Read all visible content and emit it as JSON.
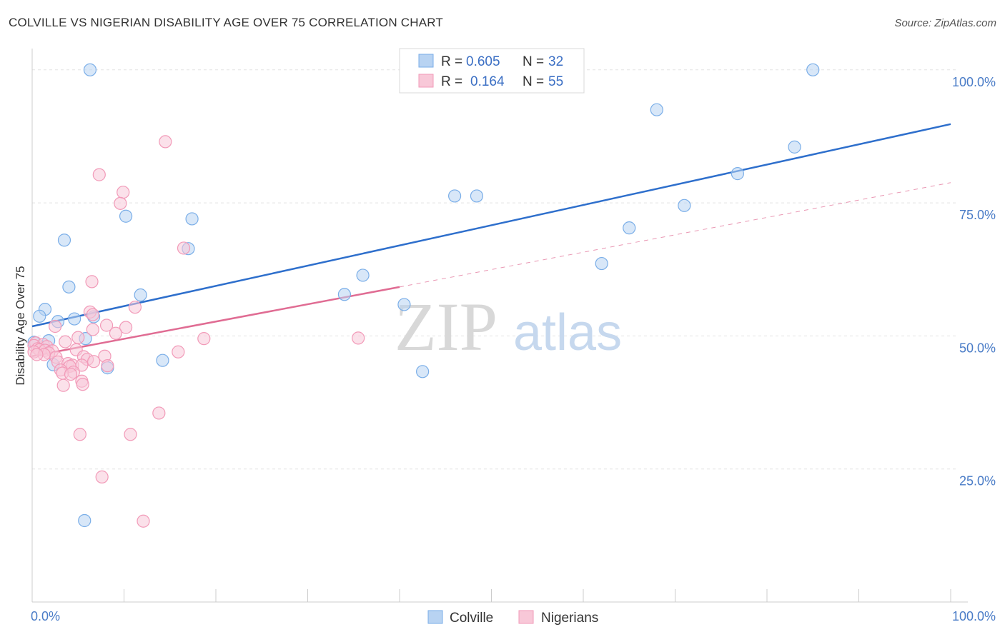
{
  "title": "COLVILLE VS NIGERIAN DISABILITY AGE OVER 75 CORRELATION CHART",
  "source": "Source: ZipAtlas.com",
  "watermark": {
    "zip": "ZIP",
    "atlas": "atlas"
  },
  "chart_data": {
    "type": "scatter",
    "xlabel": "",
    "ylabel": "Disability Age Over 75",
    "xlim": [
      0,
      100
    ],
    "ylim": [
      0,
      104
    ],
    "x_tick_labels": [
      {
        "value": 0,
        "label": "0.0%"
      },
      {
        "value": 100,
        "label": "100.0%"
      }
    ],
    "y_tick_labels": [
      {
        "value": 25,
        "label": "25.0%"
      },
      {
        "value": 50,
        "label": "50.0%"
      },
      {
        "value": 75,
        "label": "75.0%"
      },
      {
        "value": 100,
        "label": "100.0%"
      }
    ],
    "legend": [
      {
        "r_label": "R =",
        "r_value": "0.605",
        "n_label": "N =",
        "n_value": "32"
      },
      {
        "r_label": "R =",
        "r_value": "0.164",
        "n_label": "N =",
        "n_value": "55"
      }
    ],
    "series": [
      {
        "name": "Colville",
        "color": "#7aaee8",
        "fill": "#b8d3f2",
        "line_color": "#2e6fcc",
        "trend": {
          "x0": 0,
          "y0": 51.8,
          "x1": 100,
          "y1": 89.8
        },
        "points": [
          [
            6.3,
            100
          ],
          [
            85,
            100
          ],
          [
            68,
            92.5
          ],
          [
            83,
            85.5
          ],
          [
            76.8,
            80.5
          ],
          [
            46,
            76.3
          ],
          [
            48.4,
            76.3
          ],
          [
            71,
            74.5
          ],
          [
            10.2,
            72.5
          ],
          [
            17.4,
            72
          ],
          [
            65,
            70.3
          ],
          [
            3.5,
            68
          ],
          [
            17,
            66.4
          ],
          [
            62,
            63.6
          ],
          [
            36,
            61.4
          ],
          [
            4,
            59.2
          ],
          [
            34,
            57.8
          ],
          [
            11.8,
            57.7
          ],
          [
            40.5,
            55.9
          ],
          [
            1.4,
            55
          ],
          [
            0.8,
            53.7
          ],
          [
            6.7,
            53.6
          ],
          [
            4.6,
            53.2
          ],
          [
            2.8,
            52.7
          ],
          [
            5.8,
            49.5
          ],
          [
            1.8,
            49.1
          ],
          [
            0.2,
            48.8
          ],
          [
            14.2,
            45.4
          ],
          [
            2.3,
            44.6
          ],
          [
            8.2,
            44
          ],
          [
            42.5,
            43.3
          ],
          [
            5.7,
            15.3
          ]
        ]
      },
      {
        "name": "Nigerians",
        "color": "#f29ab8",
        "fill": "#f8c8d8",
        "line_color": "#e06c93",
        "trend": {
          "x0": 0,
          "y0": 46.2,
          "x1": 40,
          "y1": 59.2
        },
        "trend_ext": {
          "x0": 40,
          "y0": 59.2,
          "x1": 100,
          "y1": 78.8
        },
        "points": [
          [
            14.5,
            86.5
          ],
          [
            7.3,
            80.3
          ],
          [
            9.9,
            77
          ],
          [
            9.6,
            74.9
          ],
          [
            16.5,
            66.5
          ],
          [
            6.5,
            60.2
          ],
          [
            6.3,
            54.5
          ],
          [
            6.6,
            54
          ],
          [
            11.2,
            55.4
          ],
          [
            8.1,
            52
          ],
          [
            10.2,
            51.6
          ],
          [
            2.5,
            51.8
          ],
          [
            6.6,
            51.2
          ],
          [
            9.1,
            50.5
          ],
          [
            18.7,
            49.5
          ],
          [
            35.5,
            49.6
          ],
          [
            5,
            49.7
          ],
          [
            3.6,
            48.9
          ],
          [
            0.4,
            48.7
          ],
          [
            1.2,
            48.4
          ],
          [
            0.2,
            48.2
          ],
          [
            1.6,
            48
          ],
          [
            0.6,
            47.6
          ],
          [
            0.8,
            47.4
          ],
          [
            1.4,
            47.3
          ],
          [
            2.2,
            47.2
          ],
          [
            0.2,
            47
          ],
          [
            1.8,
            46.8
          ],
          [
            1.3,
            46.5
          ],
          [
            2.6,
            46
          ],
          [
            4.8,
            47.4
          ],
          [
            5.6,
            46.1
          ],
          [
            15.9,
            47
          ],
          [
            7.9,
            46.2
          ],
          [
            6,
            45.6
          ],
          [
            6.7,
            45.2
          ],
          [
            2.8,
            45.1
          ],
          [
            3.9,
            44.8
          ],
          [
            4.4,
            44.5
          ],
          [
            5.4,
            44.5
          ],
          [
            4.1,
            44.3
          ],
          [
            3.1,
            43.6
          ],
          [
            4.5,
            43.2
          ],
          [
            3.3,
            43
          ],
          [
            4.2,
            42.8
          ],
          [
            8.2,
            44.4
          ],
          [
            5.4,
            41.5
          ],
          [
            5.5,
            40.9
          ],
          [
            3.4,
            40.7
          ],
          [
            13.8,
            35.5
          ],
          [
            5.2,
            31.5
          ],
          [
            10.7,
            31.5
          ],
          [
            7.6,
            23.5
          ],
          [
            12.1,
            15.2
          ],
          [
            0.5,
            46.5
          ]
        ]
      }
    ]
  }
}
